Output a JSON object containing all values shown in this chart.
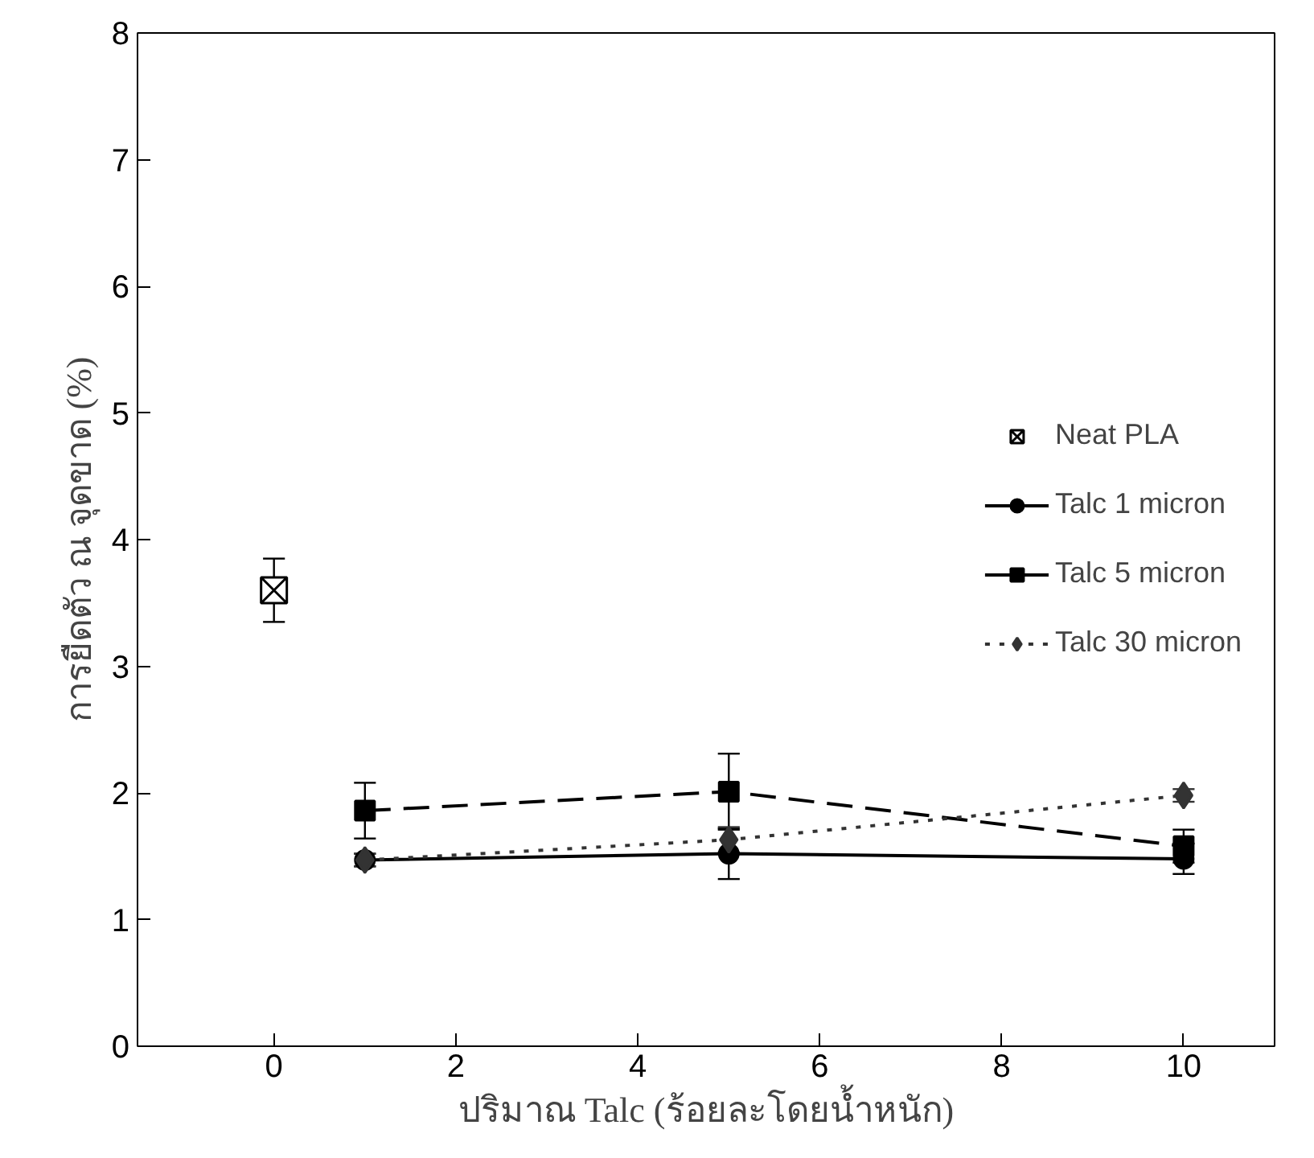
{
  "chart_data": {
    "type": "line",
    "xlabel": "ปริมาณ Talc (ร้อยละโดยน้ำหนัก)",
    "ylabel": "การยืดตัว ณ จุดขาด (%)",
    "xlim": [
      -1.5,
      11
    ],
    "xticks": [
      0,
      2,
      4,
      6,
      8,
      10
    ],
    "ylim": [
      0,
      8
    ],
    "yticks": [
      0,
      1,
      2,
      3,
      4,
      5,
      6,
      7,
      8
    ],
    "grid": false,
    "legend": "right",
    "series": [
      {
        "name": "Neat PLA",
        "type": "scatter",
        "marker": "cross",
        "color": "#000000",
        "x": [
          0
        ],
        "values": [
          3.6
        ],
        "errors": [
          0.25
        ]
      },
      {
        "name": "Talc 1 micron",
        "marker": "circle",
        "line_style": "solid",
        "color": "#000000",
        "x": [
          1,
          5,
          10
        ],
        "values": [
          1.47,
          1.52,
          1.48
        ],
        "errors": [
          0.05,
          0.2,
          0.12
        ]
      },
      {
        "name": "Talc 5 micron",
        "marker": "square",
        "line_style": "dashed",
        "color": "#000000",
        "x": [
          1,
          5,
          10
        ],
        "values": [
          1.86,
          2.01,
          1.58
        ],
        "errors": [
          0.22,
          0.3,
          0.13
        ]
      },
      {
        "name": "Talc 30 micron",
        "marker": "diamond",
        "line_style": "dotted",
        "color": "#333333",
        "x": [
          1,
          5,
          10
        ],
        "values": [
          1.47,
          1.63,
          1.98
        ],
        "errors": [
          0.05,
          0.1,
          0.05
        ]
      }
    ]
  }
}
